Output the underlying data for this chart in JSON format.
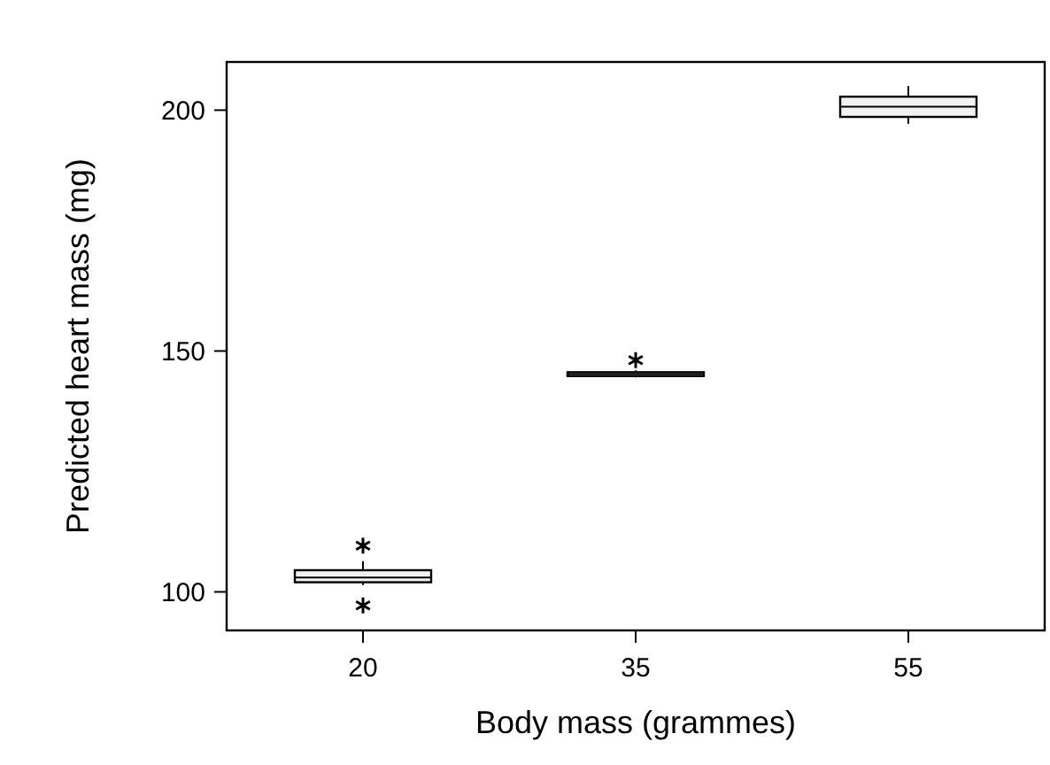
{
  "chart_data": {
    "type": "box",
    "xlabel": "Body mass (grammes)",
    "ylabel": "Predicted heart mass (mg)",
    "categories": [
      "20",
      "35",
      "55"
    ],
    "ylim": [
      92,
      210
    ],
    "yticks": [
      100,
      150,
      200
    ],
    "color": "#000000",
    "marker": "star",
    "grid": false,
    "boxes": [
      {
        "low": 101.4,
        "q1": 102,
        "median": 103,
        "q3": 104.5,
        "high": 106.4,
        "outliers": [
          109.6,
          97.2
        ]
      },
      {
        "low": 144.5,
        "q1": 144.8,
        "median": 145.2,
        "q3": 145.6,
        "high": 146,
        "outliers": [
          148.1
        ]
      },
      {
        "low": 197.2,
        "q1": 198.6,
        "median": 200.7,
        "q3": 202.8,
        "high": 205
      }
    ]
  }
}
